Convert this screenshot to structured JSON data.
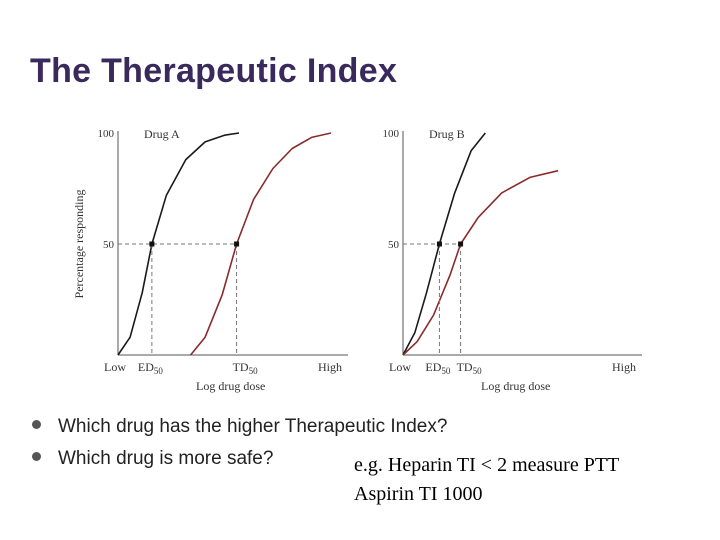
{
  "title": "The Therapeutic Index",
  "bullets": [
    "Which drug has the higher Therapeutic Index?",
    "Which drug is more safe?"
  ],
  "note": {
    "line1": "e.g. Heparin TI < 2 measure PTT",
    "line2": "Aspirin TI  1000"
  },
  "colors": {
    "efficacy": "#1a1a1a",
    "toxicity": "#8b2a2a",
    "title": "#3a2a5c"
  },
  "chart_data": [
    {
      "type": "line",
      "panel_label": "Drug A",
      "ylabel": "Percentage responding",
      "xlabel": "Log drug dose",
      "x_tick_labels": {
        "low": "Low",
        "high": "High"
      },
      "y_ticks": [
        50,
        100
      ],
      "xlim": [
        0,
        10
      ],
      "ylim": [
        0,
        100
      ],
      "ed50_label": "ED50",
      "td50_label": "TD50",
      "ed50": 1.4,
      "td50": 4.9,
      "series": [
        {
          "role": "efficacy",
          "x": [
            0,
            0.5,
            1.0,
            1.4,
            2.0,
            2.8,
            3.6,
            4.4,
            5.0
          ],
          "y": [
            0,
            8,
            28,
            50,
            72,
            88,
            96,
            99,
            100
          ]
        },
        {
          "role": "toxicity",
          "x": [
            3.0,
            3.6,
            4.3,
            4.9,
            5.6,
            6.4,
            7.2,
            8.0,
            8.8
          ],
          "y": [
            0,
            8,
            27,
            50,
            70,
            84,
            93,
            98,
            100
          ]
        }
      ]
    },
    {
      "type": "line",
      "panel_label": "Drug B",
      "ylabel": "",
      "xlabel": "Log drug dose",
      "x_tick_labels": {
        "low": "Low",
        "high": "High"
      },
      "y_ticks": [
        50,
        100
      ],
      "xlim": [
        0,
        10
      ],
      "ylim": [
        0,
        100
      ],
      "ed50_label": "ED50",
      "td50_label": "TD50",
      "ed50": 1.55,
      "td50": 2.45,
      "series": [
        {
          "role": "efficacy",
          "x": [
            0,
            0.5,
            1.0,
            1.55,
            2.2,
            2.9,
            3.5
          ],
          "y": [
            0,
            10,
            28,
            50,
            73,
            92,
            100
          ]
        },
        {
          "role": "toxicity",
          "x": [
            0,
            0.6,
            1.3,
            2.0,
            2.45,
            3.2,
            4.2,
            5.4,
            6.6
          ],
          "y": [
            0,
            6,
            18,
            36,
            50,
            62,
            73,
            80,
            83
          ]
        }
      ]
    }
  ]
}
